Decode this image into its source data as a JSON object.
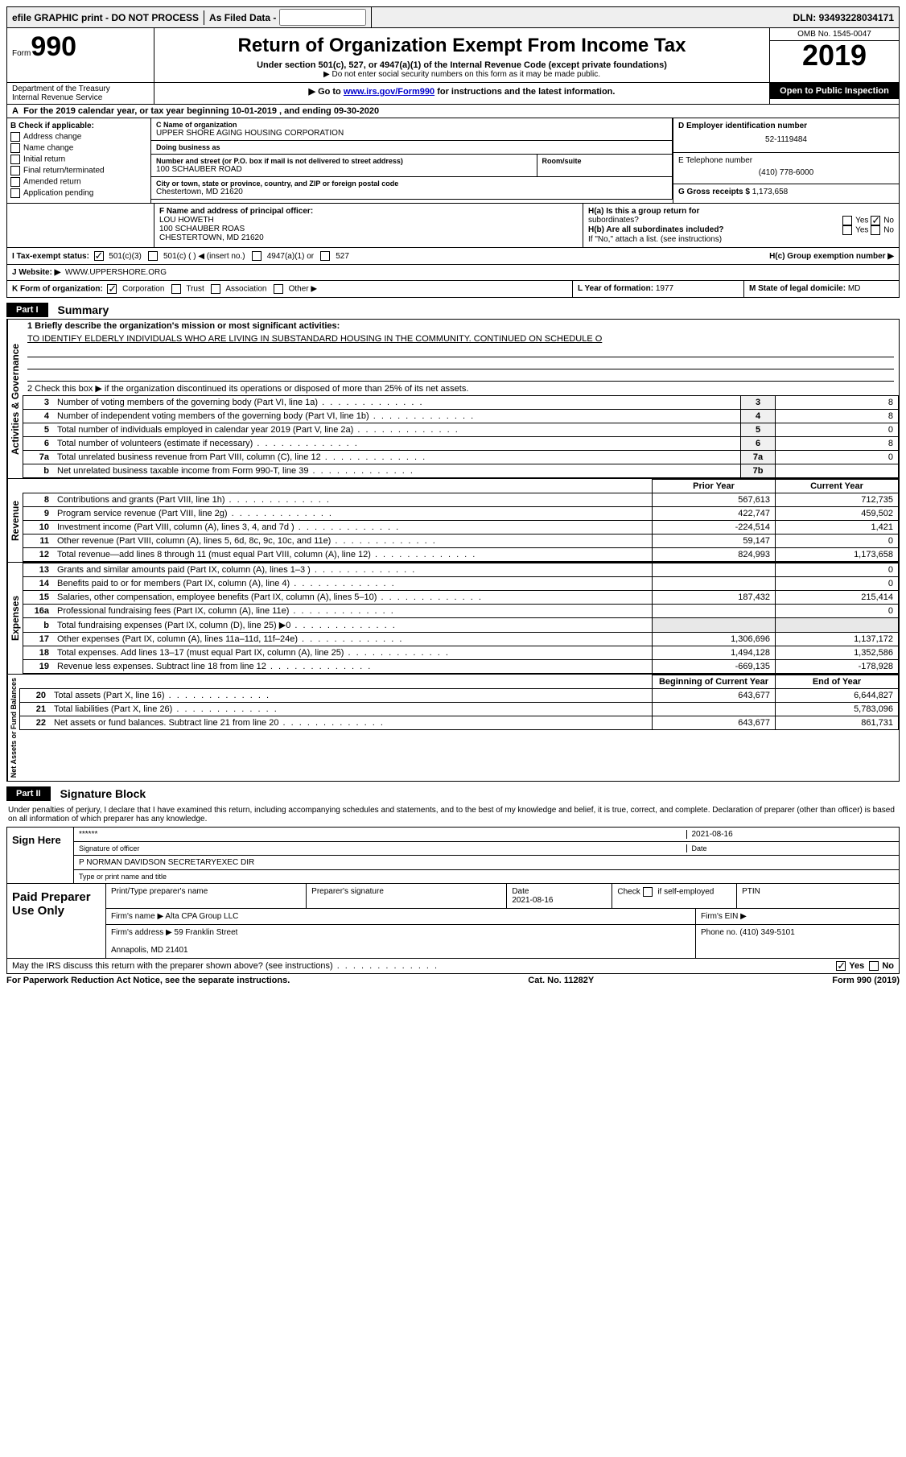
{
  "topbar": {
    "efile": "efile GRAPHIC print - DO NOT PROCESS",
    "asfiled": "As Filed Data -",
    "dln_label": "DLN:",
    "dln": "93493228034171"
  },
  "header": {
    "form_word": "Form",
    "form_num": "990",
    "dept": "Department of the Treasury\nInternal Revenue Service",
    "title": "Return of Organization Exempt From Income Tax",
    "sub1": "Under section 501(c), 527, or 4947(a)(1) of the Internal Revenue Code (except private foundations)",
    "sub2": "▶ Do not enter social security numbers on this form as it may be made public.",
    "sub3_pre": "▶ Go to ",
    "sub3_link": "www.irs.gov/Form990",
    "sub3_post": " for instructions and the latest information.",
    "omb": "OMB No. 1545-0047",
    "year": "2019",
    "open": "Open to Public Inspection"
  },
  "line_a": {
    "label": "A",
    "text": "For the 2019 calendar year, or tax year beginning 10-01-2019   , and ending 09-30-2020"
  },
  "col_b": {
    "header": "B Check if applicable:",
    "items": [
      "Address change",
      "Name change",
      "Initial return",
      "Final return/terminated",
      "Amended return",
      "Application pending"
    ]
  },
  "c": {
    "label": "C Name of organization",
    "name": "UPPER SHORE AGING HOUSING CORPORATION",
    "dba_label": "Doing business as",
    "dba": "",
    "addr_label": "Number and street (or P.O. box if mail is not delivered to street address)",
    "addr": "100 SCHAUBER ROAD",
    "room_label": "Room/suite",
    "city_label": "City or town, state or province, country, and ZIP or foreign postal code",
    "city": "Chestertown, MD  21620"
  },
  "d": {
    "label": "D Employer identification number",
    "value": "52-1119484"
  },
  "e": {
    "label": "E Telephone number",
    "value": "(410) 778-6000"
  },
  "g": {
    "label": "G Gross receipts $",
    "value": "1,173,658"
  },
  "f": {
    "label": "F  Name and address of principal officer:",
    "name": "LOU HOWETH",
    "addr1": "100 SCHAUBER ROAS",
    "addr2": "CHESTERTOWN, MD  21620"
  },
  "h": {
    "a1": "H(a)  Is this a group return for",
    "a2": "subordinates?",
    "b1": "H(b)  Are all subordinates included?",
    "note": "If \"No,\" attach a list. (see instructions)",
    "c": "H(c)  Group exemption number ▶",
    "yes": "Yes",
    "no": "No"
  },
  "i": {
    "label": "I   Tax-exempt status:",
    "o1": "501(c)(3)",
    "o2": "501(c) (   ) ◀ (insert no.)",
    "o3": "4947(a)(1) or",
    "o4": "527"
  },
  "j": {
    "label": "J   Website: ▶",
    "value": "WWW.UPPERSHORE.ORG"
  },
  "k": {
    "label": "K Form of organization:",
    "o1": "Corporation",
    "o2": "Trust",
    "o3": "Association",
    "o4": "Other ▶"
  },
  "l": {
    "label": "L Year of formation:",
    "value": "1977"
  },
  "m": {
    "label": "M State of legal domicile:",
    "value": "MD"
  },
  "part1": {
    "tab": "Part I",
    "title": "Summary"
  },
  "gov": {
    "label_side": "Activities & Governance",
    "l1a": "1 Briefly describe the organization's mission or most significant activities:",
    "l1b": "TO IDENTIFY ELDERLY INDIVIDUALS WHO ARE LIVING IN SUBSTANDARD HOUSING IN THE COMMUNITY. CONTINUED ON SCHEDULE O",
    "l2": "2   Check this box ▶        if the organization discontinued its operations or disposed of more than 25% of its net assets.",
    "rows": [
      {
        "n": "3",
        "t": "Number of voting members of the governing body (Part VI, line 1a)",
        "c": "3",
        "v": "8"
      },
      {
        "n": "4",
        "t": "Number of independent voting members of the governing body (Part VI, line 1b)",
        "c": "4",
        "v": "8"
      },
      {
        "n": "5",
        "t": "Total number of individuals employed in calendar year 2019 (Part V, line 2a)",
        "c": "5",
        "v": "0"
      },
      {
        "n": "6",
        "t": "Total number of volunteers (estimate if necessary)",
        "c": "6",
        "v": "8"
      },
      {
        "n": "7a",
        "t": "Total unrelated business revenue from Part VIII, column (C), line 12",
        "c": "7a",
        "v": "0"
      },
      {
        "n": "b",
        "t": "Net unrelated business taxable income from Form 990-T, line 39",
        "c": "7b",
        "v": ""
      }
    ]
  },
  "rev": {
    "label_side": "Revenue",
    "hdr_prior": "Prior Year",
    "hdr_curr": "Current Year",
    "rows": [
      {
        "n": "8",
        "t": "Contributions and grants (Part VIII, line 1h)",
        "p": "567,613",
        "c": "712,735"
      },
      {
        "n": "9",
        "t": "Program service revenue (Part VIII, line 2g)",
        "p": "422,747",
        "c": "459,502"
      },
      {
        "n": "10",
        "t": "Investment income (Part VIII, column (A), lines 3, 4, and 7d )",
        "p": "-224,514",
        "c": "1,421"
      },
      {
        "n": "11",
        "t": "Other revenue (Part VIII, column (A), lines 5, 6d, 8c, 9c, 10c, and 11e)",
        "p": "59,147",
        "c": "0"
      },
      {
        "n": "12",
        "t": "Total revenue—add lines 8 through 11 (must equal Part VIII, column (A), line 12)",
        "p": "824,993",
        "c": "1,173,658"
      }
    ]
  },
  "exp": {
    "label_side": "Expenses",
    "rows": [
      {
        "n": "13",
        "t": "Grants and similar amounts paid (Part IX, column (A), lines 1–3 )",
        "p": "",
        "c": "0"
      },
      {
        "n": "14",
        "t": "Benefits paid to or for members (Part IX, column (A), line 4)",
        "p": "",
        "c": "0"
      },
      {
        "n": "15",
        "t": "Salaries, other compensation, employee benefits (Part IX, column (A), lines 5–10)",
        "p": "187,432",
        "c": "215,414"
      },
      {
        "n": "16a",
        "t": "Professional fundraising fees (Part IX, column (A), line 11e)",
        "p": "",
        "c": "0"
      },
      {
        "n": "b",
        "t": "Total fundraising expenses (Part IX, column (D), line 25) ▶0",
        "p": "shade",
        "c": "shade"
      },
      {
        "n": "17",
        "t": "Other expenses (Part IX, column (A), lines 11a–11d, 11f–24e)",
        "p": "1,306,696",
        "c": "1,137,172"
      },
      {
        "n": "18",
        "t": "Total expenses. Add lines 13–17 (must equal Part IX, column (A), line 25)",
        "p": "1,494,128",
        "c": "1,352,586"
      },
      {
        "n": "19",
        "t": "Revenue less expenses. Subtract line 18 from line 12",
        "p": "-669,135",
        "c": "-178,928"
      }
    ]
  },
  "net": {
    "label_side": "Net Assets or Fund Balances",
    "hdr_beg": "Beginning of Current Year",
    "hdr_end": "End of Year",
    "rows": [
      {
        "n": "20",
        "t": "Total assets (Part X, line 16)",
        "p": "643,677",
        "c": "6,644,827"
      },
      {
        "n": "21",
        "t": "Total liabilities (Part X, line 26)",
        "p": "",
        "c": "5,783,096"
      },
      {
        "n": "22",
        "t": "Net assets or fund balances. Subtract line 21 from line 20",
        "p": "643,677",
        "c": "861,731"
      }
    ]
  },
  "part2": {
    "tab": "Part II",
    "title": "Signature Block"
  },
  "sig": {
    "perjury": "Under penalties of perjury, I declare that I have examined this return, including accompanying schedules and statements, and to the best of my knowledge and belief, it is true, correct, and complete. Declaration of preparer (other than officer) is based on all information of which preparer has any knowledge.",
    "sign_here": "Sign Here",
    "stars": "******",
    "sig_officer": "Signature of officer",
    "date_label": "Date",
    "sig_date": "2021-08-16",
    "name_title": "P NORMAN DAVIDSON SECRETARYEXEC DIR",
    "name_title_label": "Type or print name and title"
  },
  "prep": {
    "label": "Paid Preparer Use Only",
    "h1": "Print/Type preparer's name",
    "h2": "Preparer's signature",
    "h3": "Date",
    "date": "2021-08-16",
    "h4_pre": "Check",
    "h4_post": "if self-employed",
    "h5": "PTIN",
    "firm_label": "Firm's name   ▶",
    "firm": "Alta CPA Group LLC",
    "ein_label": "Firm's EIN ▶",
    "addr_label": "Firm's address ▶",
    "addr1": "59 Franklin Street",
    "addr2": "Annapolis, MD  21401",
    "phone_label": "Phone no.",
    "phone": "(410) 349-5101"
  },
  "footer": {
    "irs_discuss": "May the IRS discuss this return with the preparer shown above? (see instructions)",
    "yes": "Yes",
    "no": "No",
    "paperwork": "For Paperwork Reduction Act Notice, see the separate instructions.",
    "cat": "Cat. No. 11282Y",
    "formno": "Form 990 (2019)"
  }
}
